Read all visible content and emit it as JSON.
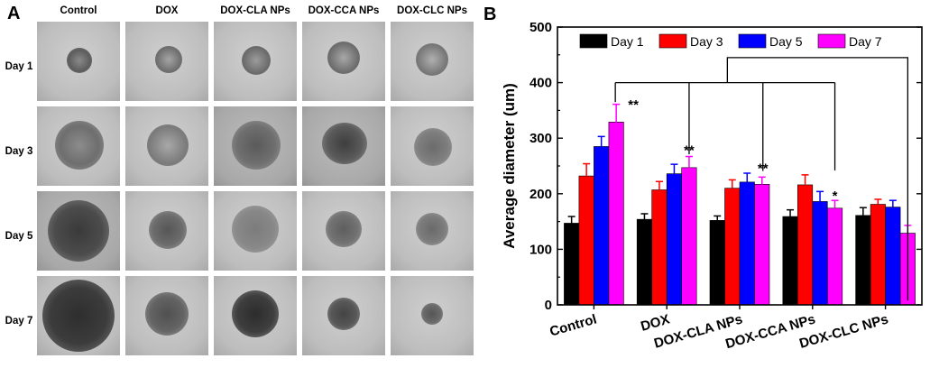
{
  "panel_a": {
    "letter": "A",
    "columns": [
      "Control",
      "DOX",
      "DOX-CLA NPs",
      "DOX-CCA NPs",
      "DOX-CLC NPs"
    ],
    "rows": [
      "Day 1",
      "Day 3",
      "Day 5",
      "Day 7"
    ]
  },
  "panel_b": {
    "letter": "B"
  },
  "chart_data": {
    "type": "bar",
    "title": "",
    "xlabel": "",
    "ylabel": "Average diameter (um)",
    "ylim": [
      0,
      500
    ],
    "yticks": [
      0,
      100,
      200,
      300,
      400,
      500
    ],
    "legend_position": "top",
    "categories": [
      "Control",
      "DOX",
      "DOX-CLA NPs",
      "DOX-CCA NPs",
      "DOX-CLC NPs"
    ],
    "series": [
      {
        "name": "Day 1",
        "color": "#000000",
        "values": [
          147,
          154,
          152,
          159,
          161
        ],
        "errors": [
          12,
          10,
          8,
          12,
          14
        ]
      },
      {
        "name": "Day 3",
        "color": "#ff0000",
        "values": [
          232,
          207,
          210,
          216,
          181
        ],
        "errors": [
          22,
          15,
          15,
          18,
          9
        ]
      },
      {
        "name": "Day 5",
        "color": "#0000ff",
        "values": [
          285,
          236,
          221,
          186,
          176
        ],
        "errors": [
          18,
          17,
          16,
          18,
          12
        ]
      },
      {
        "name": "Day 7",
        "color": "#ff00ff",
        "values": [
          329,
          247,
          217,
          174,
          129
        ],
        "errors": [
          32,
          20,
          13,
          14,
          14
        ]
      }
    ],
    "annotations": [
      {
        "text": "**",
        "category": "Control"
      },
      {
        "text": "**",
        "category": "DOX"
      },
      {
        "text": "**",
        "category": "DOX-CLA NPs"
      },
      {
        "text": "*",
        "category": "DOX-CCA NPs"
      }
    ]
  }
}
